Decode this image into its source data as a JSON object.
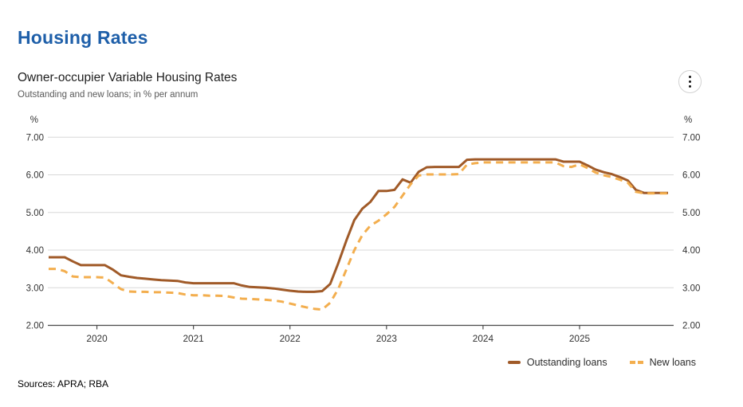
{
  "page": {
    "title": "Housing Rates",
    "sources": "Sources: APRA; RBA"
  },
  "chart": {
    "title": "Owner-occupier Variable Housing Rates",
    "subtitle": "Outstanding and new loans; in % per annum",
    "menu_icon": "kebab-menu-icon"
  },
  "colors": {
    "title_blue": "#1E5FA9",
    "outstanding_line": "#A05A28",
    "new_loans_line": "#F3AE4E",
    "gridline": "#D8D8D8",
    "axis": "#4A4A4A",
    "tick_text": "#333333"
  },
  "chart_data": {
    "type": "line",
    "title": "Owner-occupier Variable Housing Rates",
    "subtitle": "Outstanding and new loans; in % per annum",
    "y_axis_unit": "%",
    "frequency": "monthly",
    "x_start": "2019-07",
    "x_end": "2025-12",
    "x_tick_labels": [
      "2020",
      "2021",
      "2022",
      "2023",
      "2024",
      "2025"
    ],
    "x_tick_month_index": [
      6,
      18,
      30,
      42,
      54,
      66
    ],
    "y_ticks": [
      "7.00",
      "6.00",
      "5.00",
      "4.00",
      "3.00",
      "2.00"
    ],
    "y_tick_values": [
      7,
      6,
      5,
      4,
      3,
      2
    ],
    "ylim": [
      2.0,
      7.0
    ],
    "grid": "horizontal",
    "legend_position": "bottom-right",
    "series": [
      {
        "name": "Outstanding loans",
        "style": "solid",
        "color": "#A05A28",
        "values": [
          3.81,
          3.81,
          3.81,
          3.7,
          3.6,
          3.6,
          3.6,
          3.6,
          3.48,
          3.33,
          3.29,
          3.26,
          3.24,
          3.22,
          3.2,
          3.19,
          3.18,
          3.14,
          3.12,
          3.12,
          3.12,
          3.12,
          3.12,
          3.12,
          3.06,
          3.02,
          3.01,
          3.0,
          2.98,
          2.95,
          2.92,
          2.9,
          2.89,
          2.89,
          2.91,
          3.1,
          3.65,
          4.25,
          4.8,
          5.1,
          5.28,
          5.57,
          5.57,
          5.6,
          5.88,
          5.79,
          6.08,
          6.2,
          6.21,
          6.21,
          6.21,
          6.21,
          6.4,
          6.41,
          6.41,
          6.41,
          6.41,
          6.41,
          6.41,
          6.41,
          6.41,
          6.41,
          6.41,
          6.41,
          6.35,
          6.35,
          6.35,
          6.25,
          6.14,
          6.07,
          6.02,
          5.94,
          5.85,
          5.6,
          5.52,
          5.52,
          5.52,
          5.52
        ]
      },
      {
        "name": "New loans",
        "style": "dashed",
        "color": "#F3AE4E",
        "values": [
          3.5,
          3.5,
          3.44,
          3.3,
          3.28,
          3.28,
          3.28,
          3.27,
          3.12,
          2.96,
          2.9,
          2.89,
          2.89,
          2.88,
          2.88,
          2.87,
          2.86,
          2.82,
          2.8,
          2.8,
          2.79,
          2.79,
          2.78,
          2.74,
          2.71,
          2.7,
          2.69,
          2.68,
          2.66,
          2.63,
          2.58,
          2.53,
          2.48,
          2.44,
          2.42,
          2.6,
          2.97,
          3.48,
          4.0,
          4.4,
          4.65,
          4.78,
          4.95,
          5.15,
          5.45,
          5.75,
          5.98,
          6.01,
          6.01,
          6.01,
          6.01,
          6.02,
          6.27,
          6.31,
          6.33,
          6.33,
          6.33,
          6.33,
          6.33,
          6.33,
          6.33,
          6.33,
          6.33,
          6.33,
          6.23,
          6.21,
          6.28,
          6.18,
          6.06,
          5.99,
          5.94,
          5.87,
          5.79,
          5.55,
          5.51,
          5.51,
          5.51,
          5.51
        ]
      }
    ]
  }
}
